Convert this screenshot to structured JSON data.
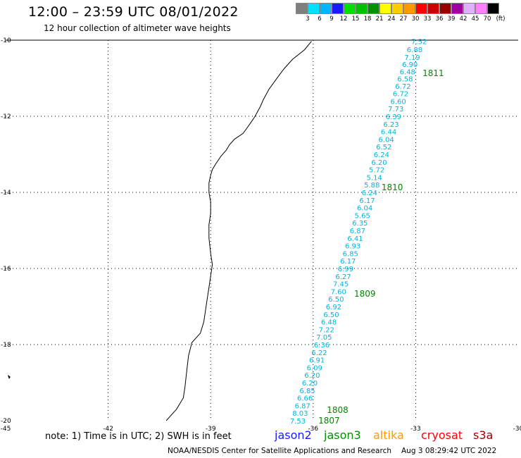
{
  "header": {
    "title": "12:00 – 23:59 UTC 08/01/2022",
    "subtitle": "12 hour collection of altimeter wave heights"
  },
  "legend": {
    "unit": "(ft)",
    "items": [
      {
        "label": "3",
        "color": "#7f7f7f"
      },
      {
        "label": "6",
        "color": "#00e0ff"
      },
      {
        "label": "9",
        "color": "#00b4ff"
      },
      {
        "label": "12",
        "color": "#1a1aff"
      },
      {
        "label": "15",
        "color": "#00e000"
      },
      {
        "label": "18",
        "color": "#00c000"
      },
      {
        "label": "21",
        "color": "#009000"
      },
      {
        "label": "24",
        "color": "#ffff00"
      },
      {
        "label": "27",
        "color": "#ffcc00"
      },
      {
        "label": "30",
        "color": "#ff9900"
      },
      {
        "label": "33",
        "color": "#ff0000"
      },
      {
        "label": "36",
        "color": "#cc0000"
      },
      {
        "label": "39",
        "color": "#990000"
      },
      {
        "label": "42",
        "color": "#a000a0"
      },
      {
        "label": "45",
        "color": "#e0b0ff"
      },
      {
        "label": "70",
        "color": "#ff80ff"
      },
      {
        "label": "",
        "color": "#000000"
      }
    ]
  },
  "map": {
    "lon_range": [
      -45,
      -30
    ],
    "lat_range": [
      -20,
      -10
    ],
    "x_ticks": [
      {
        "value": -45,
        "label": "-45"
      },
      {
        "value": -42,
        "label": "-42"
      },
      {
        "value": -39,
        "label": "-39"
      },
      {
        "value": -36,
        "label": "-36"
      },
      {
        "value": -33,
        "label": "-33"
      },
      {
        "value": -30,
        "label": "-30"
      }
    ],
    "y_ticks": [
      {
        "value": -10,
        "label": "-10"
      },
      {
        "value": -12,
        "label": "-12"
      },
      {
        "value": -14,
        "label": "-14"
      },
      {
        "value": -16,
        "label": "-16"
      },
      {
        "value": -18,
        "label": "-18"
      },
      {
        "value": -20,
        "label": "-20"
      }
    ],
    "grid": true,
    "grid_lines": {
      "lons": [
        -42,
        -39,
        -36,
        -33
      ],
      "lats": [
        -12,
        -14,
        -16,
        -18
      ]
    },
    "coastline": [
      [
        -36.05,
        -10.03
      ],
      [
        -36.25,
        -10.25
      ],
      [
        -36.6,
        -10.5
      ],
      [
        -36.85,
        -10.75
      ],
      [
        -37.1,
        -11.05
      ],
      [
        -37.3,
        -11.3
      ],
      [
        -37.45,
        -11.55
      ],
      [
        -37.55,
        -11.75
      ],
      [
        -37.7,
        -12.0
      ],
      [
        -37.85,
        -12.2
      ],
      [
        -38.05,
        -12.45
      ],
      [
        -38.3,
        -12.6
      ],
      [
        -38.45,
        -12.75
      ],
      [
        -38.55,
        -12.9
      ],
      [
        -38.7,
        -13.05
      ],
      [
        -38.85,
        -13.25
      ],
      [
        -38.95,
        -13.4
      ],
      [
        -39.0,
        -13.55
      ],
      [
        -39.05,
        -13.75
      ],
      [
        -39.05,
        -14.0
      ],
      [
        -39.0,
        -14.25
      ],
      [
        -39.0,
        -14.55
      ],
      [
        -39.05,
        -14.85
      ],
      [
        -39.05,
        -15.2
      ],
      [
        -39.0,
        -15.6
      ],
      [
        -38.95,
        -15.9
      ],
      [
        -39.0,
        -16.2
      ],
      [
        -39.05,
        -16.5
      ],
      [
        -39.1,
        -16.8
      ],
      [
        -39.15,
        -17.1
      ],
      [
        -39.2,
        -17.4
      ],
      [
        -39.3,
        -17.7
      ],
      [
        -39.55,
        -17.95
      ],
      [
        -39.65,
        -18.3
      ],
      [
        -39.7,
        -18.7
      ],
      [
        -39.75,
        -19.1
      ],
      [
        -39.8,
        -19.4
      ],
      [
        -40.0,
        -19.7
      ],
      [
        -40.2,
        -19.9
      ],
      [
        -40.3,
        -20.0
      ]
    ],
    "islands": [
      [
        -44.9,
        -18.85
      ]
    ],
    "track": {
      "color": "#00b4e0",
      "points": [
        {
          "lon": -32.9,
          "lat": -10.03,
          "swh": "7.52"
        },
        {
          "lon": -33.03,
          "lat": -10.24,
          "swh": "6.88"
        },
        {
          "lon": -33.1,
          "lat": -10.44,
          "swh": "7.19"
        },
        {
          "lon": -33.17,
          "lat": -10.63,
          "swh": "6.90"
        },
        {
          "lon": -33.24,
          "lat": -10.82,
          "swh": "6.48"
        },
        {
          "lon": -33.31,
          "lat": -11.01,
          "swh": "6.58"
        },
        {
          "lon": -33.37,
          "lat": -11.2,
          "swh": "6.72"
        },
        {
          "lon": -33.44,
          "lat": -11.4,
          "swh": "6.72"
        },
        {
          "lon": -33.51,
          "lat": -11.6,
          "swh": "6.60"
        },
        {
          "lon": -33.58,
          "lat": -11.8,
          "swh": "7.73"
        },
        {
          "lon": -33.65,
          "lat": -12.0,
          "swh": "6.39"
        },
        {
          "lon": -33.72,
          "lat": -12.2,
          "swh": "6.23"
        },
        {
          "lon": -33.79,
          "lat": -12.4,
          "swh": "6.44"
        },
        {
          "lon": -33.86,
          "lat": -12.6,
          "swh": "6.04"
        },
        {
          "lon": -33.93,
          "lat": -12.8,
          "swh": "6.52"
        },
        {
          "lon": -34.0,
          "lat": -13.0,
          "swh": "6.24"
        },
        {
          "lon": -34.07,
          "lat": -13.2,
          "swh": "6.20"
        },
        {
          "lon": -34.14,
          "lat": -13.4,
          "swh": "5.72"
        },
        {
          "lon": -34.21,
          "lat": -13.6,
          "swh": "5.14"
        },
        {
          "lon": -34.28,
          "lat": -13.8,
          "swh": "5.88"
        },
        {
          "lon": -34.35,
          "lat": -14.0,
          "swh": "6.24"
        },
        {
          "lon": -34.42,
          "lat": -14.2,
          "swh": "6.17"
        },
        {
          "lon": -34.49,
          "lat": -14.4,
          "swh": "6.04"
        },
        {
          "lon": -34.56,
          "lat": -14.6,
          "swh": "5.65"
        },
        {
          "lon": -34.63,
          "lat": -14.8,
          "swh": "6.35"
        },
        {
          "lon": -34.7,
          "lat": -15.0,
          "swh": "6.87"
        },
        {
          "lon": -34.77,
          "lat": -15.2,
          "swh": "6.41"
        },
        {
          "lon": -34.84,
          "lat": -15.4,
          "swh": "6.93"
        },
        {
          "lon": -34.91,
          "lat": -15.6,
          "swh": "6.85"
        },
        {
          "lon": -34.98,
          "lat": -15.8,
          "swh": "6.17"
        },
        {
          "lon": -35.05,
          "lat": -16.0,
          "swh": "6.99"
        },
        {
          "lon": -35.12,
          "lat": -16.2,
          "swh": "6.27"
        },
        {
          "lon": -35.19,
          "lat": -16.4,
          "swh": "7.45"
        },
        {
          "lon": -35.26,
          "lat": -16.6,
          "swh": "7.60"
        },
        {
          "lon": -35.33,
          "lat": -16.8,
          "swh": "6.50"
        },
        {
          "lon": -35.4,
          "lat": -17.0,
          "swh": "6.92"
        },
        {
          "lon": -35.47,
          "lat": -17.2,
          "swh": "6.50"
        },
        {
          "lon": -35.54,
          "lat": -17.4,
          "swh": "6.48"
        },
        {
          "lon": -35.61,
          "lat": -17.6,
          "swh": "7.22"
        },
        {
          "lon": -35.68,
          "lat": -17.8,
          "swh": "7.05"
        },
        {
          "lon": -35.75,
          "lat": -18.0,
          "swh": "6.36"
        },
        {
          "lon": -35.82,
          "lat": -18.2,
          "swh": "6.22"
        },
        {
          "lon": -35.89,
          "lat": -18.4,
          "swh": "6.91"
        },
        {
          "lon": -35.96,
          "lat": -18.6,
          "swh": "6.09"
        },
        {
          "lon": -36.03,
          "lat": -18.8,
          "swh": "6.20"
        },
        {
          "lon": -36.1,
          "lat": -19.0,
          "swh": "6.20"
        },
        {
          "lon": -36.17,
          "lat": -19.2,
          "swh": "6.85"
        },
        {
          "lon": -36.24,
          "lat": -19.4,
          "swh": "6.66"
        },
        {
          "lon": -36.31,
          "lat": -19.6,
          "swh": "6.87"
        },
        {
          "lon": -36.38,
          "lat": -19.8,
          "swh": "8.03"
        },
        {
          "lon": -36.45,
          "lat": -20.0,
          "swh": "7.53"
        }
      ]
    },
    "hour_labels": [
      {
        "text": "1811",
        "lon": -32.8,
        "lat": -10.85
      },
      {
        "text": "1810",
        "lon": -34.0,
        "lat": -13.85
      },
      {
        "text": "1809",
        "lon": -34.8,
        "lat": -16.65
      },
      {
        "text": "1808",
        "lon": -35.6,
        "lat": -19.7
      },
      {
        "text": "1807",
        "lon": -35.85,
        "lat": -19.98
      }
    ],
    "hour_label_color": "#008800"
  },
  "footer": {
    "note": "note: 1) Time is in UTC; 2) SWH is in feet",
    "satellites": [
      {
        "name": "jason2",
        "color": "#1a1aff"
      },
      {
        "name": "jason3",
        "color": "#009000"
      },
      {
        "name": "altika",
        "color": "#ff9900"
      },
      {
        "name": "cryosat",
        "color": "#ff0000"
      },
      {
        "name": "s3a",
        "color": "#990000"
      }
    ],
    "credit": "NOAA/NESDIS Center for Satellite Applications and Research",
    "timestamp": "Aug  3 08:29:42 UTC 2022"
  }
}
